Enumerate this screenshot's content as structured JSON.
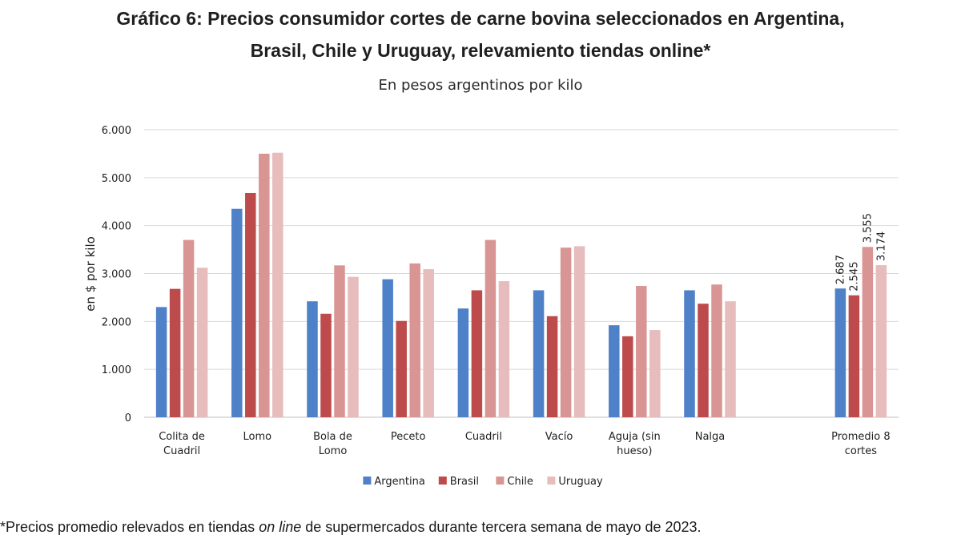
{
  "title_line_1": "Gráfico 6: Precios consumidor cortes de carne bovina seleccionados en Argentina,",
  "title_line_2": "Brasil, Chile y Uruguay, relevamiento tiendas online*",
  "subtitle": "En pesos argentinos por kilo",
  "footnote": {
    "prefix": "*Precios promedio relevados en tiendas ",
    "italic": "on line",
    "suffix": " de supermercados durante tercera semana de mayo de 2023."
  },
  "chart_data": {
    "type": "bar",
    "title": "Gráfico 6: Precios consumidor cortes de carne bovina seleccionados en Argentina, Brasil, Chile y Uruguay, relevamiento tiendas online*",
    "subtitle": "En pesos argentinos por kilo",
    "xlabel": "",
    "ylabel": "en $ por kilo",
    "ylim": [
      0,
      6000
    ],
    "yticks": [
      0,
      1000,
      2000,
      3000,
      4000,
      5000,
      6000
    ],
    "ytick_labels": [
      "0",
      "1.000",
      "2.000",
      "3.000",
      "4.000",
      "5.000",
      "6.000"
    ],
    "grid": true,
    "legend_position": "bottom",
    "categories": [
      [
        "Colita de",
        "Cuadril"
      ],
      [
        "Lomo"
      ],
      [
        "Bola de",
        "Lomo"
      ],
      [
        "Peceto"
      ],
      [
        "Cuadril"
      ],
      [
        "Vacío"
      ],
      [
        "Aguja (sin",
        "hueso)"
      ],
      [
        "Nalga"
      ],
      [],
      [
        "Promedio 8",
        "cortes"
      ]
    ],
    "series": [
      {
        "name": "Argentina",
        "color": "#4f81c9",
        "values": [
          2300,
          4350,
          2420,
          2880,
          2270,
          2650,
          1920,
          2650,
          null,
          2687
        ]
      },
      {
        "name": "Brasil",
        "color": "#be4b4b",
        "values": [
          2680,
          4680,
          2160,
          2010,
          2650,
          2110,
          1690,
          2370,
          null,
          2545
        ]
      },
      {
        "name": "Chile",
        "color": "#d99594",
        "values": [
          3700,
          5500,
          3170,
          3210,
          3700,
          3540,
          2740,
          2770,
          null,
          3555
        ]
      },
      {
        "name": "Uruguay",
        "color": "#e6bcbc",
        "values": [
          3120,
          5520,
          2930,
          3090,
          2840,
          3570,
          1820,
          2420,
          null,
          3174
        ]
      }
    ],
    "data_labels": {
      "category_index": 9,
      "labels": [
        "2.687",
        "2.545",
        "3.555",
        "3.174"
      ]
    }
  }
}
